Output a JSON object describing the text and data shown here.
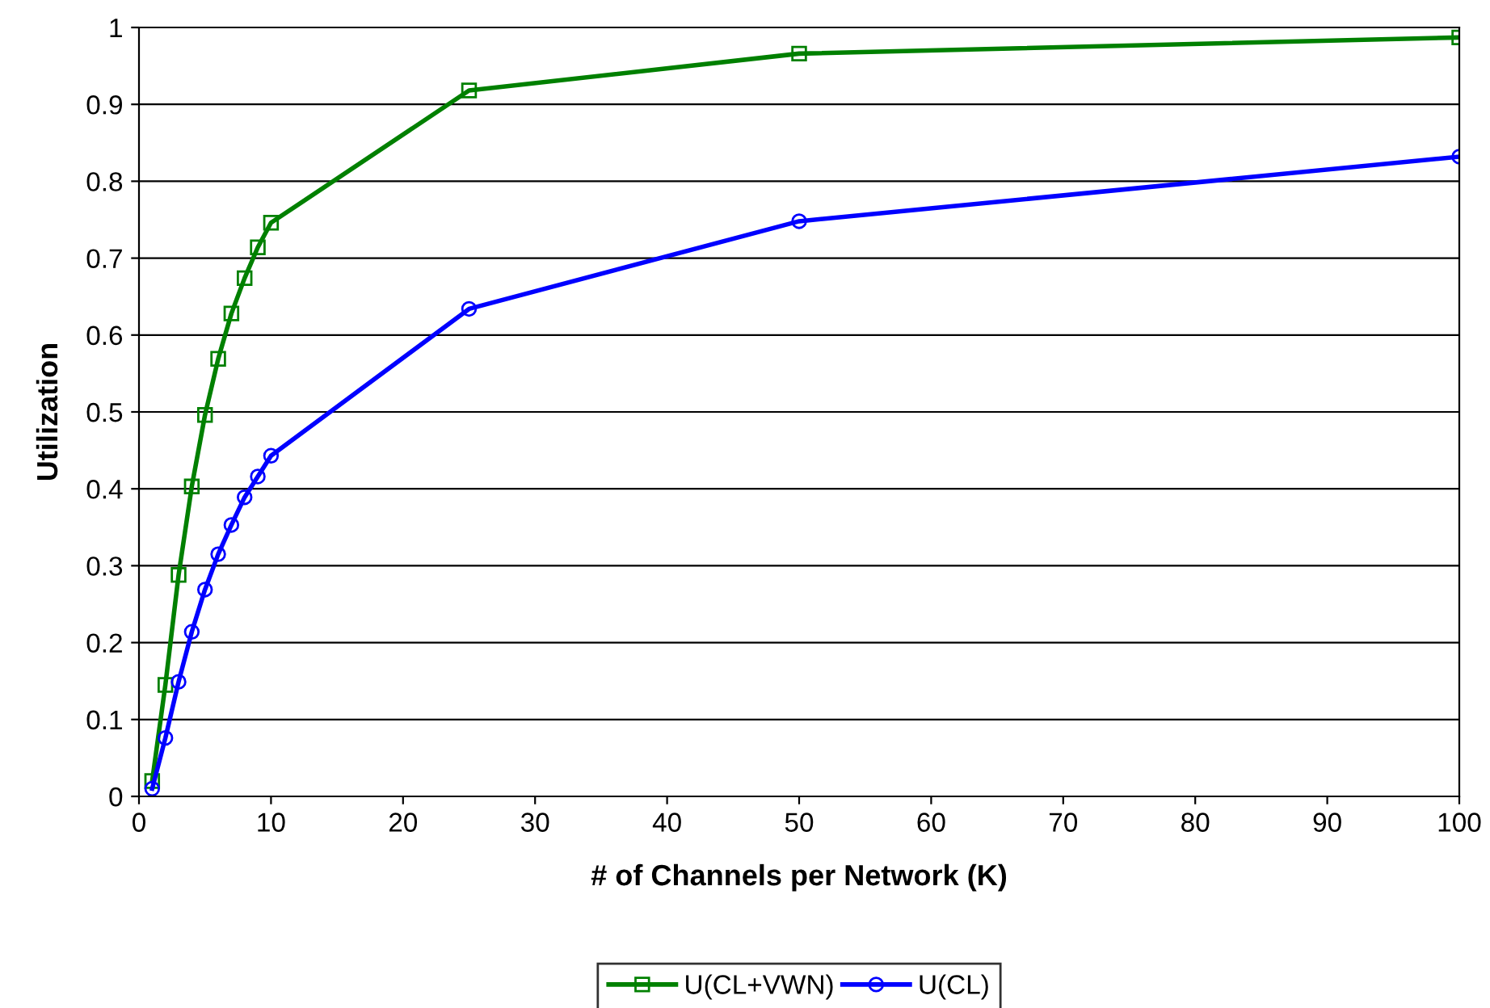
{
  "chart_data": {
    "type": "line",
    "xlabel": "# of Channels per Network (K)",
    "ylabel": "Utilization",
    "xlim": [
      0,
      100
    ],
    "xticks": [
      0,
      10,
      20,
      30,
      40,
      50,
      60,
      70,
      80,
      90,
      100
    ],
    "ylim": [
      0,
      1
    ],
    "yticks": [
      0,
      0.1,
      0.2,
      0.3,
      0.4,
      0.5,
      0.6,
      0.7,
      0.8,
      0.9,
      1
    ],
    "grid": "y",
    "legend": "bottom",
    "series": [
      {
        "name": "U(CL+VWN)",
        "color": "#008000",
        "marker": "square",
        "x": [
          1,
          2,
          3,
          4,
          5,
          6,
          7,
          8,
          9,
          10,
          25,
          50,
          100
        ],
        "values": [
          0.02,
          0.145,
          0.288,
          0.403,
          0.496,
          0.569,
          0.628,
          0.674,
          0.714,
          0.746,
          0.918,
          0.966,
          0.987
        ]
      },
      {
        "name": "U(CL)",
        "color": "#0000ff",
        "marker": "circle",
        "x": [
          1,
          2,
          3,
          4,
          5,
          6,
          7,
          8,
          9,
          10,
          25,
          50,
          100
        ],
        "values": [
          0.01,
          0.076,
          0.149,
          0.214,
          0.269,
          0.315,
          0.353,
          0.389,
          0.416,
          0.443,
          0.634,
          0.748,
          0.832
        ]
      }
    ]
  }
}
